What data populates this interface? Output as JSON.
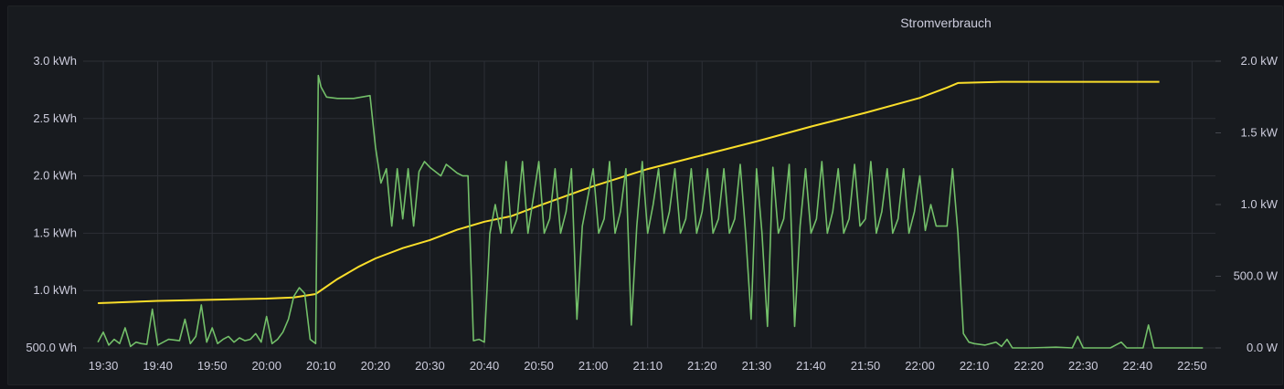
{
  "panel": {
    "title": "Stromverbrauch"
  },
  "chart_data": {
    "type": "line",
    "title": "Stromverbrauch",
    "x_ticks": [
      "19:30",
      "19:40",
      "19:50",
      "20:00",
      "20:10",
      "20:20",
      "20:30",
      "20:40",
      "20:50",
      "21:00",
      "21:10",
      "21:20",
      "21:30",
      "21:40",
      "21:50",
      "22:00",
      "22:10",
      "22:20",
      "22:30",
      "22:40",
      "22:50"
    ],
    "x_range": [
      "19:30",
      "22:50"
    ],
    "left_axis": {
      "unit": "kWh",
      "ylim": [
        0.5,
        3.0
      ],
      "tick_labels": [
        "500.0 Wh",
        "1.0 kWh",
        "1.5 kWh",
        "2.0 kWh",
        "2.5 kWh",
        "3.0 kWh"
      ]
    },
    "right_axis": {
      "unit": "W",
      "ylim": [
        0,
        2000
      ],
      "tick_labels": [
        "0.0 W",
        "500.0 W",
        "1.0 kW",
        "1.5 kW",
        "2.0 kW"
      ]
    },
    "grid": true,
    "series": [
      {
        "axis": "left",
        "color": "#fade2a",
        "points": [
          [
            "19:29",
            0.89
          ],
          [
            "19:40",
            0.91
          ],
          [
            "19:50",
            0.92
          ],
          [
            "20:00",
            0.93
          ],
          [
            "20:05",
            0.94
          ],
          [
            "20:09",
            0.97
          ],
          [
            "20:13",
            1.1
          ],
          [
            "20:17",
            1.21
          ],
          [
            "20:20",
            1.28
          ],
          [
            "20:25",
            1.37
          ],
          [
            "20:30",
            1.44
          ],
          [
            "20:35",
            1.53
          ],
          [
            "20:40",
            1.6
          ],
          [
            "20:45",
            1.65
          ],
          [
            "20:50",
            1.74
          ],
          [
            "21:00",
            1.91
          ],
          [
            "21:10",
            2.06
          ],
          [
            "21:20",
            2.18
          ],
          [
            "21:30",
            2.3
          ],
          [
            "21:40",
            2.43
          ],
          [
            "21:50",
            2.55
          ],
          [
            "22:00",
            2.68
          ],
          [
            "22:05",
            2.77
          ],
          [
            "22:07",
            2.81
          ],
          [
            "22:15",
            2.82
          ],
          [
            "22:30",
            2.82
          ],
          [
            "22:44",
            2.82
          ]
        ]
      },
      {
        "axis": "right",
        "color": "#73bf69",
        "points": [
          [
            "19:29",
            40
          ],
          [
            "19:30",
            110
          ],
          [
            "19:31",
            20
          ],
          [
            "19:32",
            60
          ],
          [
            "19:33",
            30
          ],
          [
            "19:34",
            140
          ],
          [
            "19:35",
            10
          ],
          [
            "19:36",
            40
          ],
          [
            "19:37",
            30
          ],
          [
            "19:38",
            25
          ],
          [
            "19:39",
            270
          ],
          [
            "19:40",
            20
          ],
          [
            "19:42",
            60
          ],
          [
            "19:44",
            50
          ],
          [
            "19:45",
            200
          ],
          [
            "19:46",
            30
          ],
          [
            "19:47",
            80
          ],
          [
            "19:48",
            300
          ],
          [
            "19:49",
            40
          ],
          [
            "19:50",
            140
          ],
          [
            "19:51",
            30
          ],
          [
            "19:52",
            60
          ],
          [
            "19:53",
            80
          ],
          [
            "19:54",
            40
          ],
          [
            "19:55",
            70
          ],
          [
            "19:56",
            50
          ],
          [
            "19:57",
            60
          ],
          [
            "19:58",
            100
          ],
          [
            "19:59",
            40
          ],
          [
            "20:00",
            220
          ],
          [
            "20:01",
            30
          ],
          [
            "20:02",
            60
          ],
          [
            "20:03",
            110
          ],
          [
            "20:04",
            200
          ],
          [
            "20:05",
            360
          ],
          [
            "20:06",
            420
          ],
          [
            "20:07",
            380
          ],
          [
            "20:08",
            60
          ],
          [
            "20:09",
            30
          ],
          [
            "20:09.5",
            1900
          ],
          [
            "20:10",
            1820
          ],
          [
            "20:11",
            1750
          ],
          [
            "20:13",
            1740
          ],
          [
            "20:16",
            1740
          ],
          [
            "20:19",
            1760
          ],
          [
            "20:20",
            1400
          ],
          [
            "20:21",
            1150
          ],
          [
            "20:22",
            1250
          ],
          [
            "20:23",
            850
          ],
          [
            "20:24",
            1250
          ],
          [
            "20:25",
            900
          ],
          [
            "20:26",
            1250
          ],
          [
            "20:27",
            850
          ],
          [
            "20:28",
            1230
          ],
          [
            "20:29",
            1300
          ],
          [
            "20:30",
            1260
          ],
          [
            "20:32",
            1200
          ],
          [
            "20:33",
            1280
          ],
          [
            "20:34",
            1250
          ],
          [
            "20:35",
            1220
          ],
          [
            "20:36",
            1200
          ],
          [
            "20:37",
            1200
          ],
          [
            "20:38",
            50
          ],
          [
            "20:39",
            60
          ],
          [
            "20:40",
            40
          ],
          [
            "20:41",
            800
          ],
          [
            "20:42",
            1000
          ],
          [
            "20:43",
            800
          ],
          [
            "20:44",
            1300
          ],
          [
            "20:45",
            800
          ],
          [
            "20:46",
            900
          ],
          [
            "20:47",
            1300
          ],
          [
            "20:48",
            800
          ],
          [
            "20:50",
            1300
          ],
          [
            "20:51",
            800
          ],
          [
            "20:52",
            900
          ],
          [
            "20:53",
            1250
          ],
          [
            "20:54",
            800
          ],
          [
            "20:55",
            950
          ],
          [
            "20:56",
            1250
          ],
          [
            "20:57",
            200
          ],
          [
            "20:58",
            850
          ],
          [
            "21:00",
            1250
          ],
          [
            "21:01",
            800
          ],
          [
            "21:02",
            900
          ],
          [
            "21:03",
            1300
          ],
          [
            "21:04",
            800
          ],
          [
            "21:05",
            950
          ],
          [
            "21:06",
            1250
          ],
          [
            "21:07",
            160
          ],
          [
            "21:08",
            850
          ],
          [
            "21:09",
            1300
          ],
          [
            "21:10",
            800
          ],
          [
            "21:11",
            1000
          ],
          [
            "21:12",
            1250
          ],
          [
            "21:13",
            800
          ],
          [
            "21:14",
            950
          ],
          [
            "21:15",
            1250
          ],
          [
            "21:16",
            800
          ],
          [
            "21:17",
            900
          ],
          [
            "21:18",
            1250
          ],
          [
            "21:19",
            800
          ],
          [
            "21:20",
            950
          ],
          [
            "21:21",
            1250
          ],
          [
            "21:22",
            800
          ],
          [
            "21:23",
            900
          ],
          [
            "21:24",
            1250
          ],
          [
            "21:25",
            800
          ],
          [
            "21:26",
            900
          ],
          [
            "21:27",
            1280
          ],
          [
            "21:28",
            800
          ],
          [
            "21:29",
            200
          ],
          [
            "21:30",
            1250
          ],
          [
            "21:31",
            800
          ],
          [
            "21:32",
            150
          ],
          [
            "21:33",
            1260
          ],
          [
            "21:34",
            800
          ],
          [
            "21:35",
            900
          ],
          [
            "21:36",
            1280
          ],
          [
            "21:37",
            150
          ],
          [
            "21:38",
            850
          ],
          [
            "21:39",
            1250
          ],
          [
            "21:40",
            800
          ],
          [
            "21:41",
            900
          ],
          [
            "21:42",
            1300
          ],
          [
            "21:43",
            800
          ],
          [
            "21:44",
            950
          ],
          [
            "21:45",
            1250
          ],
          [
            "21:46",
            800
          ],
          [
            "21:47",
            900
          ],
          [
            "21:48",
            1280
          ],
          [
            "21:49",
            850
          ],
          [
            "21:50",
            900
          ],
          [
            "21:51",
            1300
          ],
          [
            "21:52",
            800
          ],
          [
            "21:53",
            950
          ],
          [
            "21:54",
            1250
          ],
          [
            "21:55",
            800
          ],
          [
            "21:56",
            900
          ],
          [
            "21:57",
            1250
          ],
          [
            "21:58",
            800
          ],
          [
            "21:59",
            950
          ],
          [
            "22:00",
            1200
          ],
          [
            "22:01",
            820
          ],
          [
            "22:02",
            1000
          ],
          [
            "22:03",
            850
          ],
          [
            "22:04",
            850
          ],
          [
            "22:05",
            850
          ],
          [
            "22:06",
            1250
          ],
          [
            "22:07",
            800
          ],
          [
            "22:08",
            100
          ],
          [
            "22:09",
            40
          ],
          [
            "22:10",
            30
          ],
          [
            "22:12",
            20
          ],
          [
            "22:14",
            40
          ],
          [
            "22:15",
            10
          ],
          [
            "22:16",
            60
          ],
          [
            "22:17",
            0
          ],
          [
            "22:20",
            0
          ],
          [
            "22:25",
            5
          ],
          [
            "22:28",
            0
          ],
          [
            "22:29",
            80
          ],
          [
            "22:30",
            0
          ],
          [
            "22:35",
            0
          ],
          [
            "22:37",
            40
          ],
          [
            "22:38",
            0
          ],
          [
            "22:41",
            0
          ],
          [
            "22:42",
            160
          ],
          [
            "22:43",
            0
          ],
          [
            "22:50",
            0
          ],
          [
            "22:52",
            0
          ]
        ]
      }
    ]
  }
}
